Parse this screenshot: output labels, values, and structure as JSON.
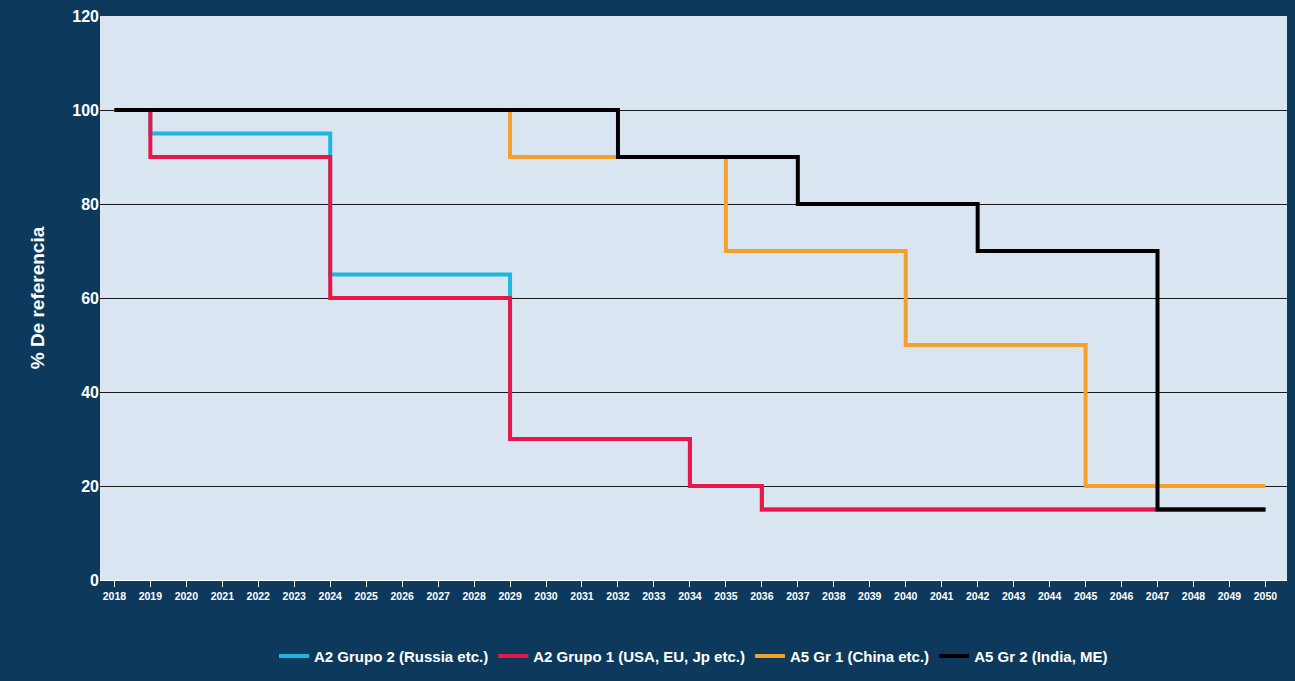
{
  "chart_data": {
    "type": "line",
    "y_label": "% De referencia",
    "x": [
      2018,
      2019,
      2020,
      2021,
      2022,
      2023,
      2024,
      2025,
      2026,
      2027,
      2028,
      2029,
      2030,
      2031,
      2032,
      2033,
      2034,
      2035,
      2036,
      2037,
      2038,
      2039,
      2040,
      2041,
      2042,
      2043,
      2044,
      2045,
      2046,
      2047,
      2048,
      2049,
      2050
    ],
    "xlim": [
      2017.6,
      2050.6
    ],
    "xticks": [
      2018,
      2019,
      2020,
      2021,
      2022,
      2023,
      2024,
      2025,
      2026,
      2027,
      2028,
      2029,
      2030,
      2031,
      2032,
      2033,
      2034,
      2035,
      2036,
      2037,
      2038,
      2039,
      2040,
      2041,
      2042,
      2043,
      2044,
      2045,
      2046,
      2047,
      2048,
      2049,
      2050
    ],
    "ylim": [
      0,
      120
    ],
    "yticks": [
      0,
      20,
      40,
      60,
      80,
      100,
      120
    ],
    "grid": true,
    "legend": "bottom",
    "line_style": "step",
    "series": [
      {
        "name": "A2 Grupo 2 (Russia etc.)",
        "color": "#1fb6e0",
        "values": [
          100,
          95,
          95,
          95,
          95,
          95,
          65,
          65,
          65,
          65,
          65,
          30,
          30,
          30,
          30,
          30,
          20,
          20,
          15,
          15,
          15,
          15,
          15,
          15,
          15,
          15,
          15,
          15,
          15,
          15,
          15,
          15,
          15
        ]
      },
      {
        "name": "A2 Grupo 1 (USA, EU, Jp etc.)",
        "color": "#e8174b",
        "values": [
          100,
          90,
          90,
          90,
          90,
          90,
          60,
          60,
          60,
          60,
          60,
          30,
          30,
          30,
          30,
          30,
          20,
          20,
          15,
          15,
          15,
          15,
          15,
          15,
          15,
          15,
          15,
          15,
          15,
          15,
          15,
          15,
          15
        ]
      },
      {
        "name": "A5 Gr 1 (China etc.)",
        "color": "#f5a02a",
        "values": [
          100,
          100,
          100,
          100,
          100,
          100,
          100,
          100,
          100,
          100,
          100,
          90,
          90,
          90,
          90,
          90,
          90,
          70,
          70,
          70,
          70,
          70,
          50,
          50,
          50,
          50,
          50,
          20,
          20,
          20,
          20,
          20,
          20
        ]
      },
      {
        "name": "A5 Gr 2 (India, ME)",
        "color": "#000000",
        "values": [
          100,
          100,
          100,
          100,
          100,
          100,
          100,
          100,
          100,
          100,
          100,
          100,
          100,
          100,
          90,
          90,
          90,
          90,
          90,
          80,
          80,
          80,
          80,
          80,
          70,
          70,
          70,
          70,
          70,
          15,
          15,
          15,
          15
        ]
      }
    ]
  }
}
